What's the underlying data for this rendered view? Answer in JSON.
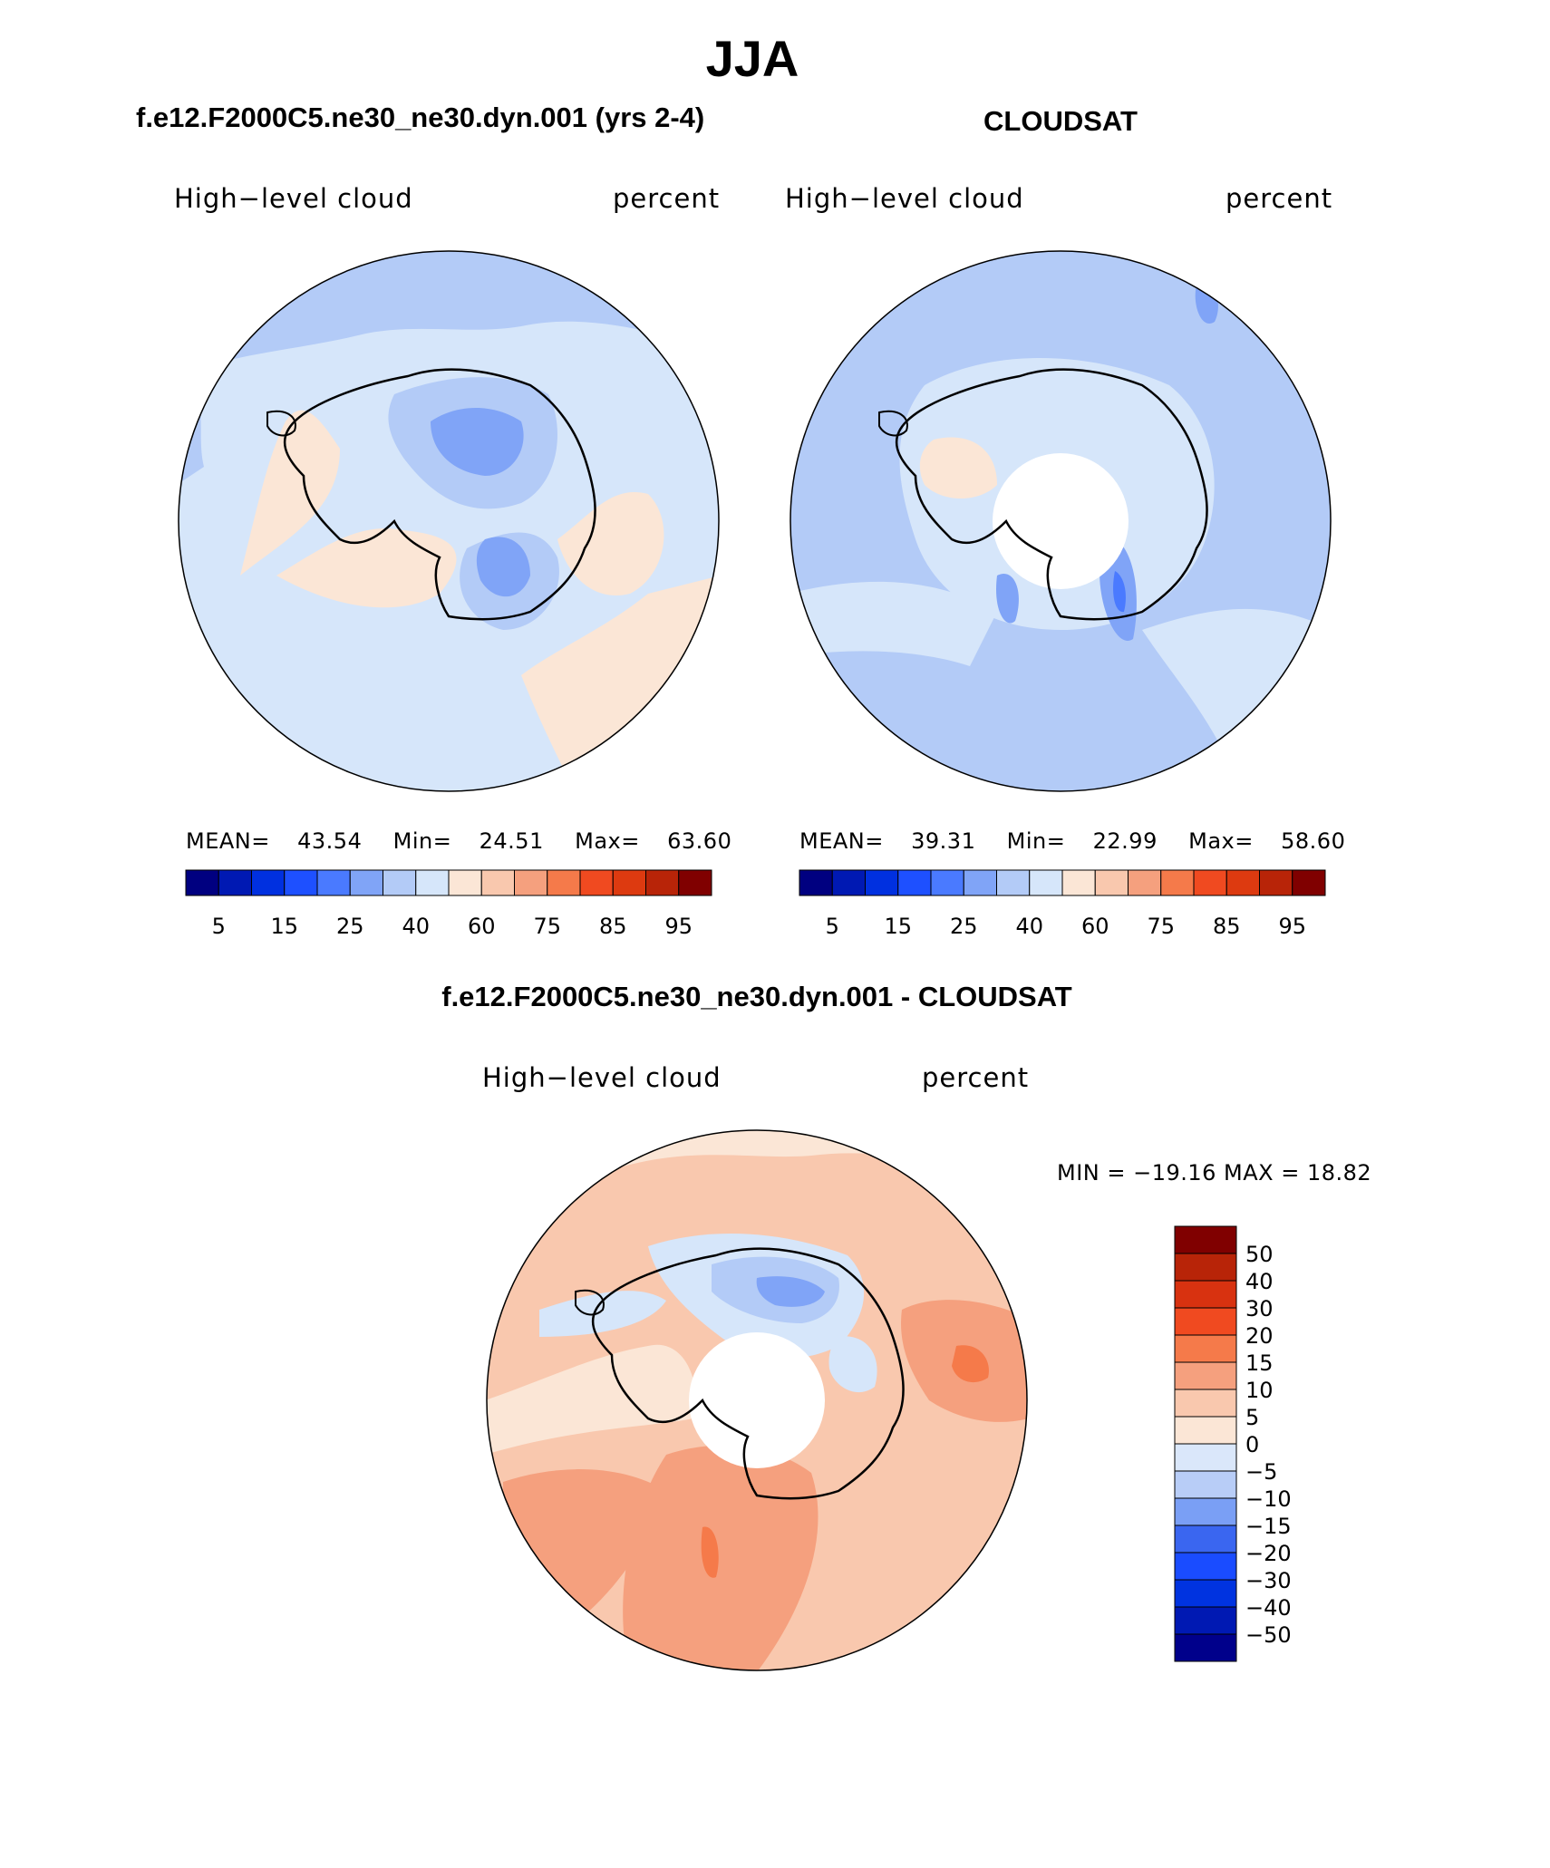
{
  "page": {
    "title": "JJA",
    "colors": {
      "cloud_scale": [
        "#000080",
        "#0019b3",
        "#0030e0",
        "#1e50ff",
        "#4a7aff",
        "#80a4f7",
        "#b3cbf7",
        "#d6e6fa",
        "#fbe6d6",
        "#f9c8ae",
        "#f5a07e",
        "#f57a4a",
        "#f04a20",
        "#dd3a10",
        "#b82408",
        "#800000"
      ],
      "diff_scale": [
        "#00008b",
        "#0019b3",
        "#0033e0",
        "#1a4cff",
        "#3a66f0",
        "#7a9ff5",
        "#b8cdf7",
        "#dae7fa",
        "#fbe6d6",
        "#f9c8ae",
        "#f5a07e",
        "#f57a4a",
        "#f04a20",
        "#d83210",
        "#b82408",
        "#800000"
      ]
    }
  },
  "panels": [
    {
      "id": "model",
      "heading": "f.e12.F2000C5.ne30_ne30.dyn.001 (yrs 2-4)",
      "variable": "High−level cloud",
      "units": "percent",
      "stats": {
        "mean_label": "MEAN=",
        "mean": "43.54",
        "min_label": "Min=",
        "min": "24.51",
        "max_label": "Max=",
        "max": "63.60"
      },
      "colorbar_labels": [
        "5",
        "15",
        "25",
        "40",
        "60",
        "75",
        "85",
        "95"
      ]
    },
    {
      "id": "obs",
      "heading": "CLOUDSAT",
      "variable": "High−level cloud",
      "units": "percent",
      "stats": {
        "mean_label": "MEAN=",
        "mean": "39.31",
        "min_label": "Min=",
        "min": "22.99",
        "max_label": "Max=",
        "max": "58.60"
      },
      "colorbar_labels": [
        "5",
        "15",
        "25",
        "40",
        "60",
        "75",
        "85",
        "95"
      ]
    }
  ],
  "difference": {
    "heading": "f.e12.F2000C5.ne30_ne30.dyn.001 - CLOUDSAT",
    "variable": "High−level cloud",
    "units": "percent",
    "minmax": "MIN = −19.16  MAX =   18.82",
    "colorbar_labels": [
      "50",
      "40",
      "30",
      "20",
      "15",
      "10",
      "5",
      "0",
      "−5",
      "−10",
      "−15",
      "−20",
      "−30",
      "−40",
      "−50"
    ]
  }
}
